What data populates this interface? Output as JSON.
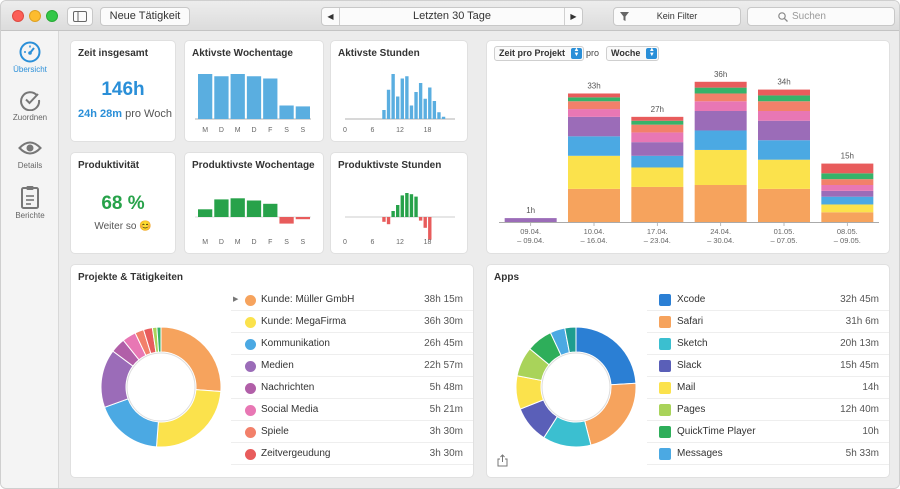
{
  "toolbar": {
    "new_activity_label": "Neue Tätigkeit",
    "date_range_label": "Letzten 30 Tage",
    "filter_label": "Kein Filter",
    "search_placeholder": "Suchen"
  },
  "sidebar": {
    "items": [
      {
        "label": "Übersicht",
        "icon": "gauge-icon",
        "active": true
      },
      {
        "label": "Zuordnen",
        "icon": "checkmark-circle-icon",
        "active": false
      },
      {
        "label": "Details",
        "icon": "eye-icon",
        "active": false
      },
      {
        "label": "Berichte",
        "icon": "clipboard-icon",
        "active": false
      }
    ]
  },
  "total_time": {
    "title": "Zeit insgesamt",
    "value": "146h",
    "sub_value": "24h 28m",
    "sub_suffix": "pro Woch",
    "color": "#2a8fd8"
  },
  "productivity": {
    "title": "Produktivität",
    "value": "68 %",
    "caption": "Weiter so 😊",
    "color": "#27a24a"
  },
  "active_weekdays": {
    "title": "Aktivste Wochentage",
    "labels": [
      "M",
      "D",
      "M",
      "D",
      "F",
      "S",
      "S"
    ],
    "values": [
      1.0,
      0.95,
      1.0,
      0.95,
      0.9,
      0.3,
      0.28
    ],
    "color": "#5aaee0"
  },
  "active_hours": {
    "title": "Aktivste Stunden",
    "ticks": [
      "0",
      "6",
      "12",
      "18"
    ],
    "values": [
      0,
      0,
      0,
      0,
      0,
      0,
      0,
      0,
      0.2,
      0.65,
      1.0,
      0.5,
      0.9,
      0.95,
      0.3,
      0.6,
      0.8,
      0.45,
      0.7,
      0.4,
      0.15,
      0.05,
      0,
      0
    ],
    "color": "#5aaee0"
  },
  "productive_weekdays": {
    "title": "Produktivste Wochentage",
    "labels": [
      "M",
      "D",
      "M",
      "D",
      "F",
      "S",
      "S"
    ],
    "values": [
      0.35,
      0.8,
      0.85,
      0.75,
      0.6,
      -0.3,
      -0.1
    ],
    "pos_color": "#27a24a",
    "neg_color": "#e85c5c"
  },
  "productive_hours": {
    "title": "Produktivste Stunden",
    "ticks": [
      "0",
      "6",
      "12",
      "18"
    ],
    "values": [
      0,
      0,
      0,
      0,
      0,
      0,
      0,
      0,
      -0.2,
      -0.3,
      0.25,
      0.5,
      0.9,
      1.0,
      0.95,
      0.85,
      -0.15,
      -0.45,
      -0.95,
      0,
      0,
      0,
      0,
      0
    ],
    "pos_color": "#27a24a",
    "neg_color": "#e85c5c"
  },
  "time_per_project": {
    "select_label": "Zeit pro Projekt",
    "per_label": "pro",
    "period_label": "Woche"
  },
  "chart_data": {
    "type": "bar",
    "stacked": true,
    "categories": [
      "09.04. – 09.04.",
      "10.04. – 16.04.",
      "17.04. – 23.04.",
      "24.04. – 30.04.",
      "01.05. – 07.05.",
      "08.05. – 09.05."
    ],
    "category_lines": [
      [
        "1h",
        "09.04.",
        "– 09.04."
      ],
      [
        "33h",
        "10.04.",
        "– 16.04."
      ],
      [
        "27h",
        "17.04.",
        "– 23.04."
      ],
      [
        "36h",
        "24.04.",
        "– 30.04."
      ],
      [
        "34h",
        "01.05.",
        "– 07.05."
      ],
      [
        "15h",
        "08.05.",
        "– 09.05."
      ]
    ],
    "totals": [
      1,
      33,
      27,
      36,
      34,
      15
    ],
    "ylim": [
      0,
      38
    ],
    "series": [
      {
        "color": "#f6a35d",
        "values": [
          0,
          8.5,
          9,
          9.5,
          8.5,
          2.5
        ]
      },
      {
        "color": "#fbe24c",
        "values": [
          0,
          8.5,
          5,
          9,
          7.5,
          2.0
        ]
      },
      {
        "color": "#4ba9e3",
        "values": [
          0,
          5,
          3,
          5,
          5,
          2.0
        ]
      },
      {
        "color": "#9b6cb8",
        "values": [
          1,
          5,
          3.5,
          5,
          5,
          1.5
        ]
      },
      {
        "color": "#e877b4",
        "values": [
          0,
          2,
          2.5,
          2.5,
          2.5,
          1.5
        ]
      },
      {
        "color": "#f2806a",
        "values": [
          0,
          2,
          2,
          2,
          2.5,
          1.5
        ]
      },
      {
        "color": "#36b36a",
        "values": [
          0,
          1,
          1,
          1.5,
          1.5,
          1.5
        ]
      },
      {
        "color": "#e85c5c",
        "values": [
          0,
          1,
          1,
          1.5,
          1.5,
          2.5
        ]
      }
    ],
    "value_color": "#555555"
  },
  "projects": {
    "title": "Projekte & Tätigkeiten",
    "items": [
      {
        "name": "Kunde: Müller GmbH",
        "value": "38h 15m",
        "color": "#f6a35d",
        "share": 26.2
      },
      {
        "name": "Kunde: MegaFirma",
        "value": "36h 30m",
        "color": "#fbe24c",
        "share": 25.0
      },
      {
        "name": "Kommunikation",
        "value": "26h 45m",
        "color": "#4ba9e3",
        "share": 18.3
      },
      {
        "name": "Medien",
        "value": "22h 57m",
        "color": "#9b6cb8",
        "share": 15.7
      },
      {
        "name": "Nachrichten",
        "value": "5h 48m",
        "color": "#b15fa8",
        "share": 4.0
      },
      {
        "name": "Social Media",
        "value": "5h 21m",
        "color": "#e877b4",
        "share": 3.7
      },
      {
        "name": "Spiele",
        "value": "3h 30m",
        "color": "#f2806a",
        "share": 2.4
      },
      {
        "name": "Zeitvergeudung",
        "value": "3h 30m",
        "color": "#e85c5c",
        "share": 2.4
      }
    ],
    "extra_slices": [
      {
        "color": "#a9d35a",
        "share": 1.2
      },
      {
        "color": "#36b36a",
        "share": 1.1
      }
    ]
  },
  "apps": {
    "title": "Apps",
    "items": [
      {
        "name": "Xcode",
        "value": "32h 45m",
        "icon": "xcode-icon",
        "color": "#2b7fd4",
        "share": 24
      },
      {
        "name": "Safari",
        "value": "31h 6m",
        "icon": "safari-icon",
        "color": "#f6a35d",
        "share": 22
      },
      {
        "name": "Sketch",
        "value": "20h 13m",
        "icon": "sketch-icon",
        "color": "#3bbfd0",
        "share": 13
      },
      {
        "name": "Slack",
        "value": "15h 45m",
        "icon": "slack-icon",
        "color": "#5a5fb8",
        "share": 10
      },
      {
        "name": "Mail",
        "value": "14h",
        "icon": "mail-icon",
        "color": "#fbe24c",
        "share": 9
      },
      {
        "name": "Pages",
        "value": "12h 40m",
        "icon": "pages-icon",
        "color": "#a9d35a",
        "share": 8
      },
      {
        "name": "QuickTime Player",
        "value": "10h",
        "icon": "quicktime-icon",
        "color": "#2eae5a",
        "share": 7
      },
      {
        "name": "Messages",
        "value": "5h 33m",
        "icon": "messages-icon",
        "color": "#4ba9e3",
        "share": 4
      }
    ],
    "extra_slices": [
      {
        "color": "#1f9d8e",
        "share": 3
      }
    ]
  }
}
